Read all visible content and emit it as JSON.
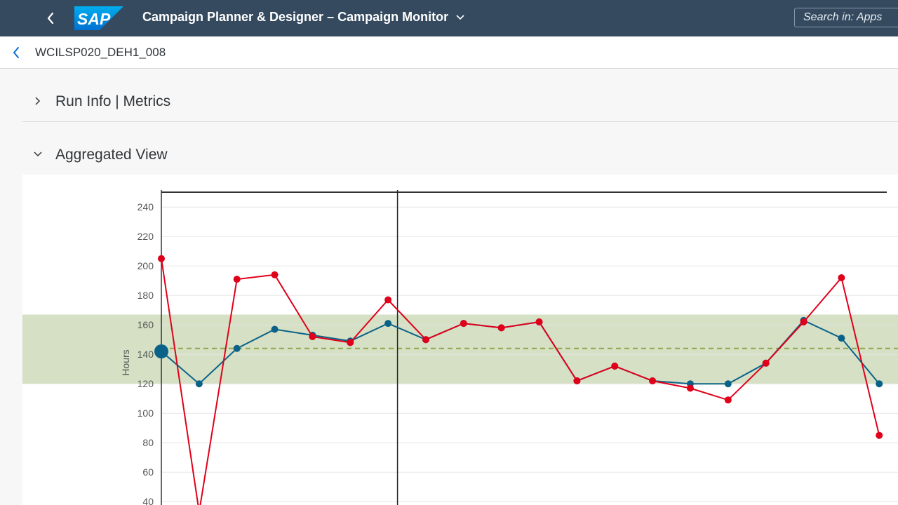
{
  "shell": {
    "logo_text": "SAP",
    "app_title": "Campaign Planner & Designer – Campaign Monitor",
    "search_placeholder": "Search in: Apps"
  },
  "object": {
    "title": "WCILSP020_DEH1_008"
  },
  "sections": [
    {
      "title": "Run Info | Metrics",
      "expanded": false
    },
    {
      "title": "Aggregated View",
      "expanded": true
    }
  ],
  "colors": {
    "shell_bg": "#354a5f",
    "series_actual": "#e0001a",
    "series_trend": "#0b6288",
    "band": "#d5e0c4",
    "mean_line": "#8da54e"
  },
  "chart_data": {
    "type": "line",
    "ylabel": "Hours",
    "y_ticks": [
      40,
      60,
      80,
      100,
      120,
      140,
      160,
      180,
      200,
      220,
      240
    ],
    "ylim": [
      40,
      250
    ],
    "x": [
      0,
      1,
      2,
      3,
      4,
      5,
      6,
      7,
      8,
      9,
      10,
      11,
      12,
      13,
      14,
      15,
      16,
      17,
      18,
      19
    ],
    "x_range": [
      0,
      19.2
    ],
    "control_band": [
      120,
      167
    ],
    "mean": 144,
    "selected_index": 6.25,
    "series": [
      {
        "values": [
          205,
          33,
          191,
          194,
          152,
          148,
          177,
          150,
          161,
          158,
          162,
          122,
          132,
          122,
          117,
          109,
          134,
          162,
          192,
          85
        ]
      },
      {
        "values": [
          142,
          120,
          144,
          157,
          153,
          149,
          161,
          150,
          161,
          158,
          162,
          122,
          132,
          122,
          120,
          120,
          134,
          163,
          151,
          120
        ]
      }
    ]
  }
}
